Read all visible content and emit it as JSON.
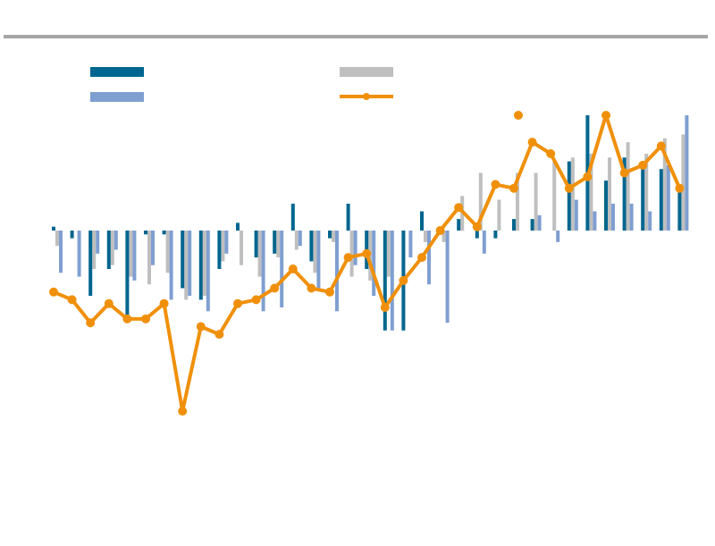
{
  "chart_data": {
    "type": "bar",
    "colors": {
      "series_a": "#00668f",
      "series_b": "#7f9fd1",
      "series_c": "#bfbfbf",
      "line": "#f0900a",
      "rule": "#a6a6a6"
    },
    "ylim": [
      -60,
      30
    ],
    "legend_placement": "top",
    "grid": false,
    "series": [
      {
        "type": "bar",
        "values": [
          1,
          -2,
          -17,
          -10,
          -22,
          -1,
          -1,
          -15,
          -18,
          -10,
          2,
          -7,
          -6,
          7,
          -8,
          -2,
          7,
          -10,
          -26,
          -26,
          5,
          -1,
          3,
          -2,
          -2,
          3,
          3,
          0,
          18,
          30,
          13,
          19,
          18,
          16,
          10
        ]
      },
      {
        "type": "bar",
        "values": [
          -11,
          -12,
          -6,
          -5,
          -13,
          -9,
          -18,
          -17,
          -21,
          -6,
          0,
          -21,
          -20,
          -4,
          -15,
          -21,
          -9,
          -17,
          -26,
          -7,
          -14,
          -24,
          0,
          -6,
          0,
          0,
          4,
          -3,
          8,
          5,
          7,
          7,
          5,
          17,
          30
        ]
      },
      {
        "type": "bar",
        "values": [
          -4,
          0,
          -10,
          -9,
          -12,
          -14,
          -11,
          -18,
          -17,
          -8,
          -9,
          -12,
          -7,
          -5,
          -11,
          -3,
          -12,
          -13,
          -12,
          0,
          -3,
          -3,
          9,
          15,
          8,
          15,
          15,
          18,
          19,
          20,
          19,
          23,
          20,
          24,
          25
        ]
      },
      {
        "type": "line",
        "values": [
          -16,
          -18,
          -24,
          -19,
          -23,
          -23,
          -19,
          -47,
          -25,
          -27,
          -19,
          -18,
          -15,
          -10,
          -15,
          -16,
          -7,
          -6,
          -20,
          -13,
          -7,
          0,
          6,
          1,
          12,
          11,
          23,
          20,
          11,
          14,
          30,
          15,
          17,
          22,
          11
        ],
        "outlier_marker": 30
      }
    ]
  }
}
